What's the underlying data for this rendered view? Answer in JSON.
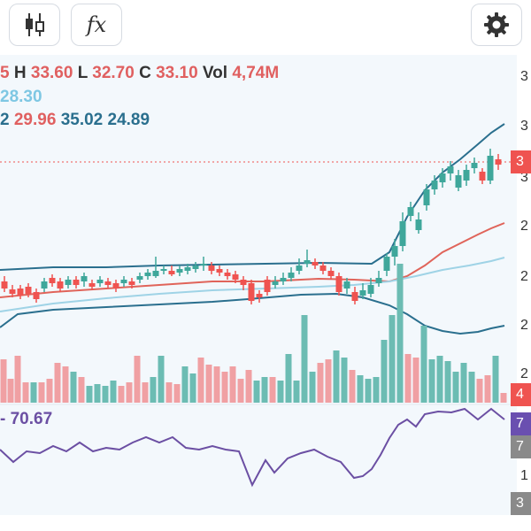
{
  "toolbar": {
    "fx_label": "fx"
  },
  "legend": {
    "ohlc_fragment": "5",
    "h_label": "H",
    "h_value": "33.60",
    "l_label": "L",
    "l_value": "32.70",
    "c_label": "C",
    "c_value": "33.10",
    "vol_label": "Vol",
    "vol_value": "4,74M",
    "ma_value": "28.30",
    "bb_fragment": "2",
    "bb_mid": "29.96",
    "bb_upper": "35.02",
    "bb_lower": "24.89",
    "rsi_fragment": "-",
    "rsi_value": "70.67"
  },
  "price_axis_labels": [
    "3",
    "3",
    "3",
    "2",
    "2",
    "2",
    "2",
    "1",
    "3"
  ],
  "right_tags": {
    "price": "3",
    "volume": "4",
    "rsi": "7",
    "rsi_b": "7"
  },
  "colors": {
    "up": "#3fa79b",
    "down": "#ef5350",
    "volume_up": "#6cbcb3",
    "volume_down": "#f0a0a3",
    "bb_band": "#2a6f8e",
    "ma_red": "#e0645a",
    "ma_light": "#9fd3e6",
    "rsi": "#6b4fa3",
    "legend_red": "#e06060",
    "legend_blue": "#2a6f8e",
    "legend_light": "#7ec7e3",
    "rsi_tag": "#6a4fb0",
    "gray_tag": "#8a8a8a"
  },
  "icons": [
    "candlestick-chart-icon",
    "function-icon",
    "gear-icon"
  ]
}
